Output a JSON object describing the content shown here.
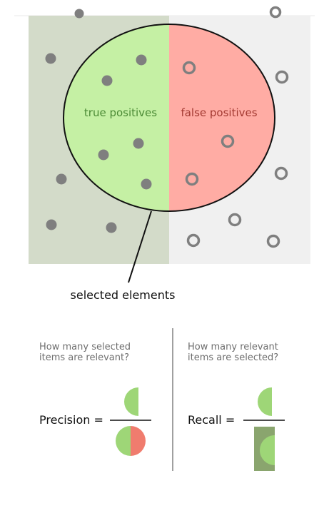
{
  "regions": {
    "true_positives_label": "true positives",
    "false_positives_label": "false positives",
    "selected_elements_label": "selected elements"
  },
  "precision": {
    "question_line1": "How many selected",
    "question_line2": "items are relevant?",
    "formula_label": "Precision ="
  },
  "recall": {
    "question_line1": "How many relevant",
    "question_line2": "items are selected?",
    "formula_label": "Recall ="
  },
  "colors": {
    "relevant_background": "#d3dbc9",
    "irrelevant_background": "#f0f0f0",
    "true_positive_fill": "#c5f0a4",
    "false_positive_fill": "#ffaca4",
    "relevant_dot": "#7f7f7f",
    "precision_green": "#9ed677",
    "precision_red": "#f07c6e",
    "recall_dark_green": "#8aa56e",
    "tp_text": "#4b8a35",
    "fp_text": "#a33a32"
  }
}
